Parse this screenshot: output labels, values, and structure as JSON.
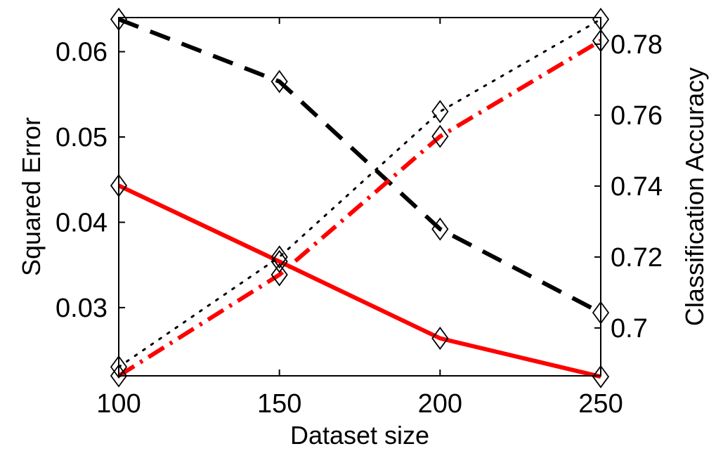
{
  "chart_data": {
    "type": "line",
    "xlabel": "Dataset size",
    "ylabel_left": "Squared Error",
    "ylabel_right": "Classification Accuracy",
    "x": [
      100,
      150,
      200,
      250
    ],
    "xlim": [
      100,
      250
    ],
    "ylim_left": [
      0.022,
      0.064
    ],
    "ylim_right": [
      0.6865,
      0.7875
    ],
    "x_ticks": [
      "100",
      "150",
      "200",
      "250"
    ],
    "y_ticks_left": [
      "0.03",
      "0.04",
      "0.05",
      "0.06"
    ],
    "y_ticks_right": [
      "0.7",
      "0.72",
      "0.74",
      "0.76",
      "0.78"
    ],
    "grid": false,
    "series": [
      {
        "axis": "left",
        "style": "dashed",
        "color": "#000000",
        "values": [
          0.0638,
          0.0565,
          0.0392,
          0.0294
        ]
      },
      {
        "axis": "left",
        "style": "solid",
        "color": "#ff0000",
        "values": [
          0.0443,
          0.0354,
          0.0264,
          0.0219
        ]
      },
      {
        "axis": "right",
        "style": "dotted",
        "color": "#000000",
        "values": [
          0.689,
          0.72,
          0.761,
          0.787
        ]
      },
      {
        "axis": "right",
        "style": "dash-dot",
        "color": "#ff0000",
        "values": [
          0.6865,
          0.715,
          0.754,
          0.781
        ]
      }
    ]
  }
}
